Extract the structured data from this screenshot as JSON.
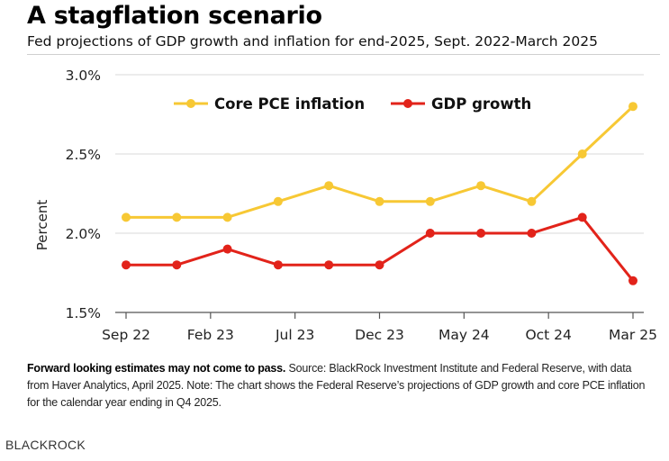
{
  "title": "A stagflation scenario",
  "subtitle": "Fed projections of GDP growth and inflation for end-2025, Sept. 2022-March 2025",
  "source_bold": "Forward looking estimates may not come to pass.",
  "source_text": " Source: BlackRock Investment Institute and Federal Reserve, with data from Haver Analytics, April 2025. Note: The chart shows the Federal Reserve’s projections of GDP growth and core PCE inflation for the calendar year ending in Q4 2025.",
  "brand": "BLACKROCK",
  "colors": {
    "core_pce": "#f7c834",
    "gdp": "#e2231a",
    "grid": "#d9d9d9",
    "axis": "#555555"
  },
  "chart_data": {
    "type": "line",
    "ylabel": "Percent",
    "xlabel": "",
    "ylim": [
      1.5,
      3.0
    ],
    "yticks": [
      "3.0%",
      "2.5%",
      "2.0%",
      "1.5%"
    ],
    "ytick_values": [
      3.0,
      2.5,
      2.0,
      1.5
    ],
    "xtick_labels": [
      "Sep 22",
      "Feb 23",
      "Jul 23",
      "Dec 23",
      "May 24",
      "Oct 24",
      "Mar 25"
    ],
    "xtick_index": [
      0,
      2,
      4,
      6,
      8,
      10,
      12
    ],
    "x": [
      "Sep 22",
      "Dec 22",
      "Mar 23",
      "Jun 23",
      "Sep 23",
      "Dec 23",
      "Mar 24",
      "Jun 24",
      "Sep 24",
      "Dec 24",
      "Mar 25"
    ],
    "grid": "horizontal",
    "legend_position": "top",
    "series": [
      {
        "name": "Core PCE inflation",
        "color": "#f7c834",
        "values": [
          2.1,
          2.1,
          2.1,
          2.2,
          2.3,
          2.2,
          2.2,
          2.3,
          2.2,
          2.5,
          2.8
        ]
      },
      {
        "name": "GDP growth",
        "color": "#e2231a",
        "values": [
          1.8,
          1.8,
          1.9,
          1.8,
          1.8,
          1.8,
          2.0,
          2.0,
          2.0,
          2.1,
          1.7
        ]
      }
    ]
  }
}
